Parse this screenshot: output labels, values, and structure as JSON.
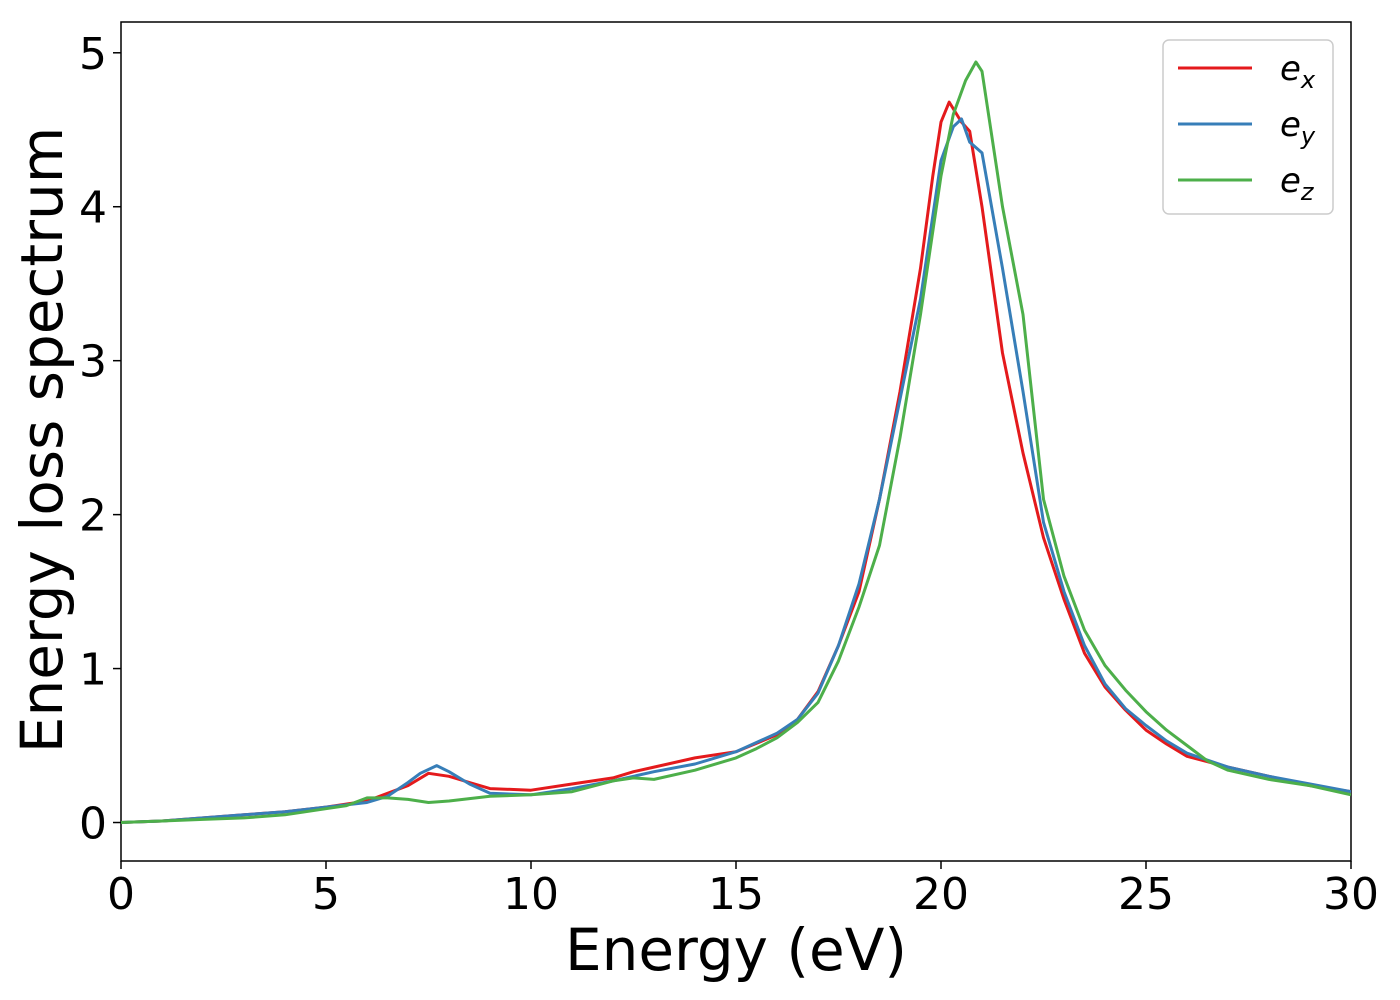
{
  "chart_data": {
    "type": "line",
    "title": "",
    "xlabel": "Energy (eV)",
    "ylabel": "Energy loss spectrum",
    "xlim": [
      0,
      30
    ],
    "ylim": [
      -0.25,
      5.2
    ],
    "x_ticks": [
      0,
      5,
      10,
      15,
      20,
      25,
      30
    ],
    "y_ticks": [
      0,
      1,
      2,
      3,
      4,
      5
    ],
    "grid": false,
    "legend_position": "top-right",
    "series": [
      {
        "name": "e",
        "name_subscript": "x",
        "color": "#e41a1c",
        "points": [
          [
            0,
            0
          ],
          [
            1,
            0.01
          ],
          [
            2,
            0.03
          ],
          [
            3,
            0.05
          ],
          [
            4,
            0.07
          ],
          [
            5,
            0.1
          ],
          [
            6,
            0.14
          ],
          [
            7,
            0.24
          ],
          [
            7.5,
            0.32
          ],
          [
            8,
            0.3
          ],
          [
            8.5,
            0.26
          ],
          [
            9,
            0.22
          ],
          [
            10,
            0.21
          ],
          [
            11,
            0.25
          ],
          [
            12,
            0.29
          ],
          [
            12.5,
            0.33
          ],
          [
            13,
            0.36
          ],
          [
            14,
            0.42
          ],
          [
            15,
            0.46
          ],
          [
            16,
            0.57
          ],
          [
            16.5,
            0.67
          ],
          [
            17,
            0.85
          ],
          [
            17.5,
            1.15
          ],
          [
            18,
            1.5
          ],
          [
            18.5,
            2.1
          ],
          [
            19,
            2.8
          ],
          [
            19.5,
            3.6
          ],
          [
            19.8,
            4.2
          ],
          [
            20,
            4.55
          ],
          [
            20.2,
            4.68
          ],
          [
            20.5,
            4.55
          ],
          [
            20.7,
            4.49
          ],
          [
            21,
            4.0
          ],
          [
            21.5,
            3.05
          ],
          [
            22,
            2.4
          ],
          [
            22.5,
            1.85
          ],
          [
            23,
            1.45
          ],
          [
            23.5,
            1.1
          ],
          [
            24,
            0.88
          ],
          [
            24.5,
            0.73
          ],
          [
            25,
            0.6
          ],
          [
            25.5,
            0.51
          ],
          [
            26,
            0.43
          ],
          [
            27,
            0.36
          ],
          [
            28,
            0.3
          ],
          [
            29,
            0.24
          ],
          [
            30,
            0.2
          ]
        ]
      },
      {
        "name": "e",
        "name_subscript": "y",
        "color": "#377eb8",
        "points": [
          [
            0,
            0
          ],
          [
            1,
            0.01
          ],
          [
            2,
            0.03
          ],
          [
            3,
            0.05
          ],
          [
            4,
            0.07
          ],
          [
            5,
            0.1
          ],
          [
            6,
            0.13
          ],
          [
            6.5,
            0.17
          ],
          [
            7,
            0.26
          ],
          [
            7.3,
            0.32
          ],
          [
            7.7,
            0.37
          ],
          [
            8,
            0.33
          ],
          [
            8.5,
            0.25
          ],
          [
            9,
            0.19
          ],
          [
            10,
            0.18
          ],
          [
            11,
            0.22
          ],
          [
            12,
            0.27
          ],
          [
            13,
            0.33
          ],
          [
            14,
            0.38
          ],
          [
            15,
            0.46
          ],
          [
            16,
            0.58
          ],
          [
            16.5,
            0.67
          ],
          [
            17,
            0.84
          ],
          [
            17.5,
            1.15
          ],
          [
            18,
            1.55
          ],
          [
            18.5,
            2.1
          ],
          [
            19,
            2.75
          ],
          [
            19.5,
            3.4
          ],
          [
            20,
            4.3
          ],
          [
            20.3,
            4.52
          ],
          [
            20.5,
            4.57
          ],
          [
            20.7,
            4.42
          ],
          [
            21,
            4.35
          ],
          [
            21.5,
            3.6
          ],
          [
            22,
            2.8
          ],
          [
            22.5,
            1.95
          ],
          [
            23,
            1.5
          ],
          [
            23.5,
            1.15
          ],
          [
            24,
            0.9
          ],
          [
            24.5,
            0.74
          ],
          [
            25,
            0.63
          ],
          [
            25.5,
            0.53
          ],
          [
            26,
            0.45
          ],
          [
            27,
            0.36
          ],
          [
            28,
            0.3
          ],
          [
            29,
            0.25
          ],
          [
            30,
            0.2
          ]
        ]
      },
      {
        "name": "e",
        "name_subscript": "z",
        "color": "#4daf4a",
        "points": [
          [
            0,
            0
          ],
          [
            1,
            0.01
          ],
          [
            2,
            0.02
          ],
          [
            3,
            0.03
          ],
          [
            4,
            0.05
          ],
          [
            5,
            0.09
          ],
          [
            5.5,
            0.11
          ],
          [
            6,
            0.16
          ],
          [
            6.5,
            0.16
          ],
          [
            7,
            0.15
          ],
          [
            7.5,
            0.13
          ],
          [
            8,
            0.14
          ],
          [
            9,
            0.17
          ],
          [
            10,
            0.18
          ],
          [
            11,
            0.2
          ],
          [
            12,
            0.27
          ],
          [
            12.5,
            0.29
          ],
          [
            13,
            0.28
          ],
          [
            14,
            0.34
          ],
          [
            15,
            0.42
          ],
          [
            15.5,
            0.48
          ],
          [
            16,
            0.55
          ],
          [
            16.5,
            0.65
          ],
          [
            17,
            0.78
          ],
          [
            17.5,
            1.05
          ],
          [
            18,
            1.4
          ],
          [
            18.5,
            1.8
          ],
          [
            19,
            2.5
          ],
          [
            19.5,
            3.3
          ],
          [
            20,
            4.2
          ],
          [
            20.3,
            4.6
          ],
          [
            20.6,
            4.82
          ],
          [
            20.85,
            4.94
          ],
          [
            21,
            4.88
          ],
          [
            21.5,
            4.0
          ],
          [
            22,
            3.3
          ],
          [
            22.5,
            2.1
          ],
          [
            23,
            1.6
          ],
          [
            23.5,
            1.25
          ],
          [
            24,
            1.02
          ],
          [
            24.5,
            0.86
          ],
          [
            25,
            0.72
          ],
          [
            25.5,
            0.6
          ],
          [
            26,
            0.5
          ],
          [
            26.5,
            0.4
          ],
          [
            27,
            0.34
          ],
          [
            28,
            0.28
          ],
          [
            29,
            0.24
          ],
          [
            30,
            0.18
          ]
        ]
      }
    ]
  }
}
